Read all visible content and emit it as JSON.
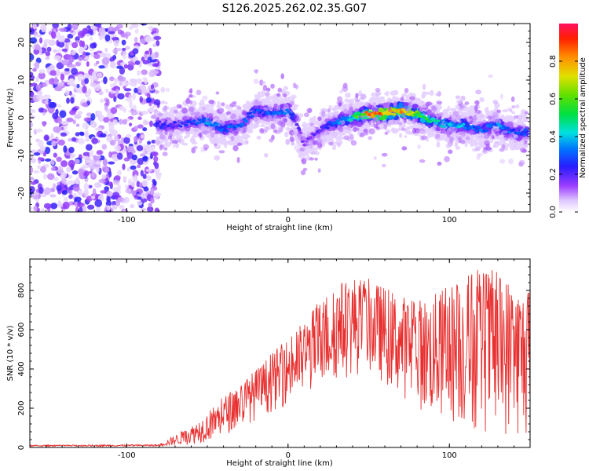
{
  "title": "S126.2025.262.02.35.G07",
  "chart_data": [
    {
      "type": "heatmap",
      "xlabel": "Height of straight line (km)",
      "ylabel": "Frequency (Hz)",
      "xlim": [
        -160,
        150
      ],
      "ylim": [
        -25,
        25
      ],
      "x_ticks": [
        -100,
        0,
        100
      ],
      "y_ticks": [
        -20,
        -10,
        0,
        10,
        20
      ],
      "colorbar": {
        "label": "Normalized spectral amplitude",
        "range": [
          0,
          1
        ],
        "ticks": [
          "0.0",
          "0.2",
          "0.4",
          "0.6",
          "0.8"
        ],
        "tick_values": [
          0,
          0.2,
          0.4,
          0.6,
          0.8
        ]
      },
      "ridge": {
        "x": [
          -81,
          -70,
          -60,
          -50,
          -40,
          -30,
          -20,
          -10,
          0,
          5,
          10,
          15,
          20,
          30,
          40,
          50,
          60,
          70,
          80,
          90,
          100,
          110,
          120,
          130,
          140,
          148
        ],
        "freq": [
          -2,
          -2,
          -1,
          -1,
          -3,
          -2,
          2,
          1,
          2,
          -1,
          -7,
          -5,
          -3,
          -1,
          0,
          1,
          1,
          2,
          1,
          -1,
          -2,
          -2,
          -3,
          -2,
          -4,
          -4
        ],
        "amp": [
          0.25,
          0.22,
          0.25,
          0.35,
          0.3,
          0.3,
          0.28,
          0.3,
          0.35,
          0.2,
          0.15,
          0.18,
          0.22,
          0.3,
          0.45,
          0.8,
          0.9,
          0.75,
          0.6,
          0.45,
          0.4,
          0.35,
          0.3,
          0.35,
          0.3,
          0.3
        ]
      },
      "noise_region_x": [
        -160,
        -80
      ]
    },
    {
      "type": "line",
      "xlabel": "Height of straight line (km)",
      "ylabel": "SNR (10 * v/v)",
      "xlim": [
        -160,
        150
      ],
      "ylim": [
        0,
        960
      ],
      "x_ticks": [
        -100,
        0,
        100
      ],
      "y_ticks": [
        0,
        200,
        400,
        600,
        800
      ],
      "color": "#e83030",
      "envelope": {
        "x": [
          -160,
          -80,
          -75,
          -60,
          -50,
          -40,
          -30,
          -20,
          -10,
          0,
          10,
          20,
          30,
          40,
          50,
          60,
          70,
          80,
          90,
          100,
          110,
          120,
          130,
          140,
          150
        ],
        "upper": [
          12,
          15,
          40,
          110,
          180,
          260,
          330,
          400,
          480,
          560,
          650,
          760,
          840,
          880,
          860,
          820,
          780,
          760,
          780,
          840,
          900,
          920,
          900,
          860,
          800
        ],
        "lower": [
          5,
          6,
          8,
          15,
          30,
          60,
          100,
          140,
          180,
          220,
          260,
          300,
          340,
          360,
          380,
          320,
          260,
          200,
          150,
          120,
          90,
          70,
          60,
          50,
          40
        ]
      }
    }
  ]
}
